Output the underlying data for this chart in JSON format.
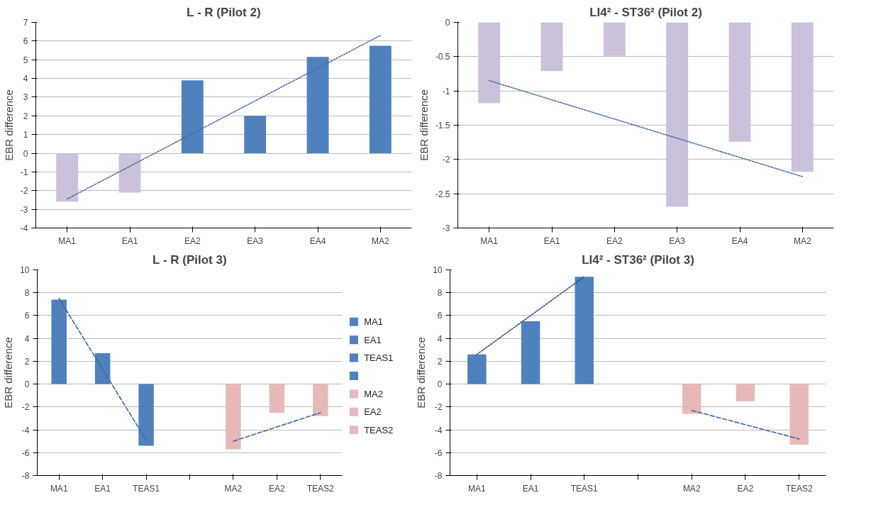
{
  "chart_data": [
    {
      "type": "bar",
      "title": "L - R (Pilot 2)",
      "ylabel": "EBR difference",
      "categories": [
        "MA1",
        "EA1",
        "EA2",
        "EA3",
        "EA4",
        "MA2"
      ],
      "series": [
        {
          "type": "bar",
          "values": [
            -2.6,
            -2.1,
            3.9,
            2.0,
            5.15,
            5.75
          ],
          "colors": [
            "#ccc1da",
            "#ccc1da",
            "#4f81bd",
            "#4f81bd",
            "#4f81bd",
            "#4f81bd"
          ]
        },
        {
          "type": "line",
          "color": "#4a6fa5",
          "line_style": "dotted",
          "values": [
            -2.45,
            -0.7,
            1.05,
            2.8,
            4.55,
            6.3
          ]
        }
      ],
      "ylim": [
        -4,
        7
      ],
      "yticks": [
        -4,
        -3,
        -2,
        -1,
        0,
        1,
        2,
        3,
        4,
        5,
        6,
        7
      ],
      "grid": "y"
    },
    {
      "type": "bar",
      "title": "LI4² - ST36² (Pilot 2)",
      "ylabel": "EBR difference",
      "categories": [
        "MA1",
        "EA1",
        "EA2",
        "EA3",
        "EA4",
        "MA2"
      ],
      "series": [
        {
          "type": "bar",
          "values": [
            -1.18,
            -0.71,
            -0.49,
            -2.69,
            -1.74,
            -2.18
          ],
          "colors": [
            "#ccc1da",
            "#ccc1da",
            "#ccc1da",
            "#ccc1da",
            "#ccc1da",
            "#ccc1da"
          ]
        },
        {
          "type": "line",
          "color": "#4a6fa5",
          "line_style": "dotted",
          "values": [
            -0.85,
            -1.13,
            -1.41,
            -1.69,
            -1.97,
            -2.25
          ]
        }
      ],
      "ylim": [
        -3,
        0
      ],
      "yticks": [
        -3,
        -2.5,
        -2,
        -1.5,
        -1,
        -0.5,
        0
      ],
      "grid": "y"
    },
    {
      "type": "bar",
      "title": "L - R (Pilot 3)",
      "ylabel": "EBR difference",
      "categories": [
        "MA1",
        "EA1",
        "TEAS1",
        null,
        "MA2",
        "EA2",
        "TEAS2"
      ],
      "series": [
        {
          "type": "bar",
          "name": "MA1",
          "color": "#4f81bd",
          "values": [
            7.4,
            null,
            null,
            null,
            null,
            null,
            null
          ]
        },
        {
          "type": "bar",
          "name": "EA1",
          "color": "#4f81bd",
          "values": [
            null,
            2.7,
            null,
            null,
            null,
            null,
            null
          ]
        },
        {
          "type": "bar",
          "name": "TEAS1",
          "color": "#4f81bd",
          "values": [
            null,
            null,
            -5.4,
            null,
            null,
            null,
            null
          ]
        },
        {
          "type": "bar",
          "color": "#4f81bd",
          "values": [
            null,
            null,
            null,
            null,
            null,
            null,
            null
          ]
        },
        {
          "type": "bar",
          "name": "MA2",
          "color": "#e6b9b8",
          "values": [
            null,
            null,
            null,
            null,
            -5.7,
            null,
            null
          ]
        },
        {
          "type": "bar",
          "name": "EA2",
          "color": "#e6b9b8",
          "values": [
            null,
            null,
            null,
            null,
            null,
            -2.5,
            null
          ]
        },
        {
          "type": "bar",
          "name": "TEAS2",
          "color": "#e6b9b8",
          "values": [
            null,
            null,
            null,
            null,
            null,
            null,
            -2.8
          ]
        },
        {
          "type": "line",
          "color": "#3a66a8",
          "line_style": "dashed",
          "values": [
            7.5,
            1.3,
            -4.9,
            null,
            null,
            null,
            null
          ]
        },
        {
          "type": "line",
          "color": "#3a66a8",
          "line_style": "dashed",
          "values": [
            null,
            null,
            null,
            null,
            -5.0,
            -3.75,
            -2.5
          ]
        }
      ],
      "ylim": [
        -8,
        10
      ],
      "yticks": [
        -8,
        -6,
        -4,
        -2,
        0,
        2,
        4,
        6,
        8,
        10
      ],
      "grid": "y",
      "legend": "right"
    },
    {
      "type": "bar",
      "title": "LI4² - ST36² (Pilot 3)",
      "ylabel": "EBR difference",
      "categories": [
        "MA1",
        "EA1",
        "TEAS1",
        null,
        "MA2",
        "EA2",
        "TEAS2"
      ],
      "series": [
        {
          "type": "bar",
          "values": [
            2.6,
            5.5,
            9.4,
            null,
            -2.6,
            -1.5,
            -5.3
          ],
          "colors": [
            "#4f81bd",
            "#4f81bd",
            "#4f81bd",
            "#4f81bd",
            "#e6b9b8",
            "#e6b9b8",
            "#e6b9b8"
          ]
        },
        {
          "type": "line",
          "color": "#2f4f80",
          "line_style": "dotted",
          "values": [
            2.6,
            6.0,
            9.4,
            null,
            null,
            null,
            null
          ]
        },
        {
          "type": "line",
          "color": "#3a66a8",
          "line_style": "dashed",
          "values": [
            null,
            null,
            null,
            null,
            -2.3,
            -3.55,
            -4.8
          ]
        }
      ],
      "ylim": [
        -8,
        10
      ],
      "yticks": [
        -8,
        -6,
        -4,
        -2,
        0,
        2,
        4,
        6,
        8,
        10
      ],
      "grid": "y"
    }
  ]
}
